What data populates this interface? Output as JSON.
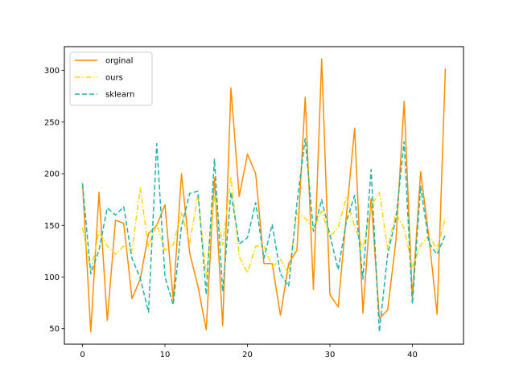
{
  "chart_data": {
    "type": "line",
    "title": "",
    "xlabel": "",
    "ylabel": "",
    "xlim": [
      -2.2,
      46.2
    ],
    "ylim": [
      35,
      323
    ],
    "xticks": [
      0,
      10,
      20,
      30,
      40
    ],
    "yticks": [
      50,
      100,
      150,
      200,
      250,
      300
    ],
    "grid": false,
    "legend_position": "top-left",
    "x": [
      0,
      1,
      2,
      3,
      4,
      5,
      6,
      7,
      8,
      9,
      10,
      11,
      12,
      13,
      14,
      15,
      16,
      17,
      18,
      19,
      20,
      21,
      22,
      23,
      24,
      25,
      26,
      27,
      28,
      29,
      30,
      31,
      32,
      33,
      34,
      35,
      36,
      37,
      38,
      39,
      40,
      41,
      42,
      43,
      44
    ],
    "series": [
      {
        "name": "orginal",
        "color": "#ff8c00",
        "style": "solid",
        "values": [
          191,
          47,
          182,
          58,
          155,
          152,
          79,
          98,
          142,
          150,
          170,
          78,
          200,
          123,
          91,
          49,
          196,
          53,
          283,
          178,
          219,
          200,
          113,
          113,
          63,
          113,
          126,
          274,
          88,
          311,
          83,
          71,
          160,
          244,
          65,
          176,
          60,
          68,
          135,
          270,
          80,
          202,
          139,
          64,
          302
        ]
      },
      {
        "name": "ours",
        "color": "#ffd700",
        "style": "dashdot",
        "values": [
          148,
          106,
          144,
          130,
          122,
          130,
          126,
          186,
          129,
          151,
          126,
          131,
          162,
          133,
          180,
          101,
          179,
          131,
          197,
          120,
          104,
          130,
          130,
          110,
          117,
          103,
          162,
          157,
          146,
          164,
          139,
          148,
          177,
          149,
          128,
          169,
          182,
          127,
          162,
          147,
          110,
          131,
          140,
          127,
          157
        ]
      },
      {
        "name": "sklearn",
        "color": "#20b2aa",
        "style": "dashed",
        "values": [
          190,
          103,
          126,
          167,
          160,
          168,
          118,
          99,
          66,
          229,
          100,
          73,
          149,
          181,
          183,
          83,
          214,
          86,
          182,
          132,
          138,
          172,
          118,
          151,
          103,
          91,
          171,
          234,
          144,
          175,
          141,
          107,
          154,
          179,
          98,
          204,
          47,
          122,
          156,
          231,
          74,
          188,
          133,
          122,
          141
        ]
      }
    ]
  }
}
